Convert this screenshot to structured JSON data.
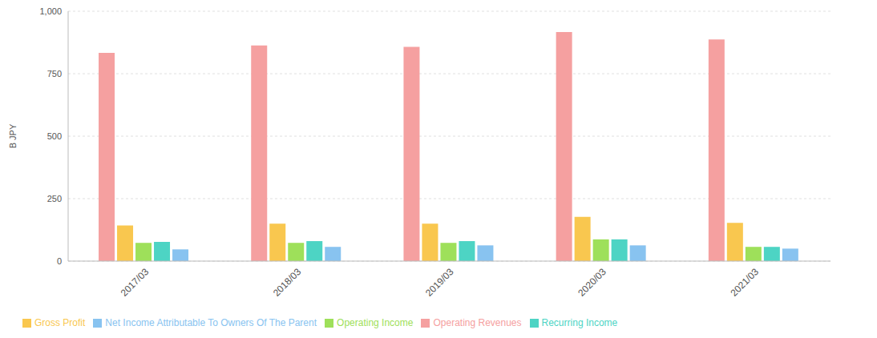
{
  "chart_data": {
    "type": "bar",
    "y_label": "B JPY",
    "categories": [
      "2017/03",
      "2018/03",
      "2019/03",
      "2020/03",
      "2021/03"
    ],
    "series": [
      {
        "name": "Operating Revenues",
        "color": "#f5a0a0",
        "values": [
          833,
          863,
          857,
          917,
          887
        ]
      },
      {
        "name": "Gross Profit",
        "color": "#f9c74f",
        "values": [
          143,
          150,
          150,
          177,
          153
        ]
      },
      {
        "name": "Operating Income",
        "color": "#9ee05a",
        "values": [
          73,
          73,
          73,
          87,
          57
        ]
      },
      {
        "name": "Recurring Income",
        "color": "#4dd4c4",
        "values": [
          77,
          80,
          80,
          87,
          57
        ]
      },
      {
        "name": "Net Income Attributable To Owners Of The Parent",
        "color": "#88c3f0",
        "values": [
          47,
          57,
          63,
          63,
          50
        ]
      }
    ],
    "ylim": [
      0,
      1000
    ],
    "yticks": [
      0,
      250,
      500,
      750,
      {
        "value": 1000,
        "label": "1,000"
      }
    ],
    "grid": true,
    "legend": "bottom"
  }
}
